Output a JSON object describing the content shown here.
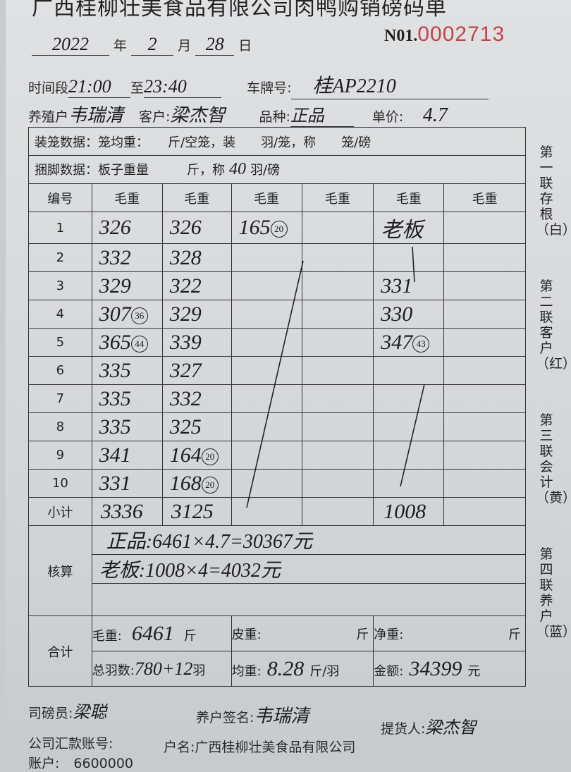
{
  "title": "广西桂柳壮美食品有限公司肉鸭购销磅码单",
  "serial_prefix": "N01.",
  "serial": "0002713",
  "date": {
    "year": "2022",
    "year_lbl": "年",
    "month": "2",
    "month_lbl": "月",
    "day": "28",
    "day_lbl": "日"
  },
  "info": {
    "time_lbl": "时间段",
    "time_from": "21:00",
    "to_lbl": "至",
    "time_to": "23:40",
    "plate_lbl": "车牌号:",
    "plate": "桂AP2210",
    "farmer_lbl": "养殖户",
    "farmer": "韦瑞清",
    "customer_lbl": "客户:",
    "customer": "梁杰智",
    "breed_lbl": "品种:",
    "breed": "正品",
    "price_lbl": "单价:",
    "price": "4.7"
  },
  "cage_row": "装笼数据：笼均重：　　斤/空笼，装　　羽/笼，称　　笼/磅",
  "tie_row": {
    "pre": "捆脚数据：板子重量　　　斤，称",
    "val": "40",
    "post": "羽/磅"
  },
  "headers": [
    "编号",
    "毛重",
    "毛重",
    "毛重",
    "毛重",
    "毛重",
    "毛重"
  ],
  "rows": [
    {
      "n": "1",
      "c1": "326",
      "c2": "326",
      "c3": "165",
      "c3c": "20",
      "c5": "老板"
    },
    {
      "n": "2",
      "c1": "332",
      "c2": "328"
    },
    {
      "n": "3",
      "c1": "329",
      "c2": "322",
      "c5": "331"
    },
    {
      "n": "4",
      "c1": "307",
      "c1c": "36",
      "c2": "329",
      "c5": "330"
    },
    {
      "n": "5",
      "c1": "365",
      "c1c": "44",
      "c2": "339",
      "c5": "347",
      "c5c": "43"
    },
    {
      "n": "6",
      "c1": "335",
      "c2": "327"
    },
    {
      "n": "7",
      "c1": "335",
      "c2": "332"
    },
    {
      "n": "8",
      "c1": "335",
      "c2": "325"
    },
    {
      "n": "9",
      "c1": "341",
      "c2": "164",
      "c2c": "20"
    },
    {
      "n": "10",
      "c1": "331",
      "c2": "168",
      "c2c": "20"
    }
  ],
  "subtotal": {
    "lbl": "小计",
    "c1": "3336",
    "c2": "3125",
    "c5": "1008"
  },
  "check": {
    "lbl": "核算",
    "line1": "正品:6461×4.7=30367元",
    "line2": "老板:1008×4=4032元"
  },
  "total": {
    "lbl": "合计",
    "gross_lbl": "毛重:",
    "gross": "6461",
    "jin": "斤",
    "tare_lbl": "皮重:",
    "net_lbl": "净重:",
    "count_lbl": "总羽数:",
    "count": "780+12",
    "yu": "羽",
    "avg_lbl": "均重:",
    "avg": "8.28",
    "avg_unit": "斤/羽",
    "amount_lbl": "金额:",
    "amount": "34399",
    "yuan": "元"
  },
  "footer": {
    "weigher_lbl": "司磅员:",
    "weigher": "梁聪",
    "farmer_sign_lbl": "养户签名:",
    "farmer_sign": "韦瑞清",
    "pickup_lbl": "提货人:",
    "pickup": "梁杰智",
    "account_lbl": "公司汇款账号:",
    "acct_name_lbl": "户名:",
    "acct_name": "广西桂柳壮美食品有限公司",
    "acct_no_lbl": "账户:",
    "acct_no": "6600000"
  },
  "side_notes": [
    "第一联存根（白）",
    "第二联客户（红）",
    "第三联会计（黄）",
    "第四联养户（蓝）"
  ]
}
